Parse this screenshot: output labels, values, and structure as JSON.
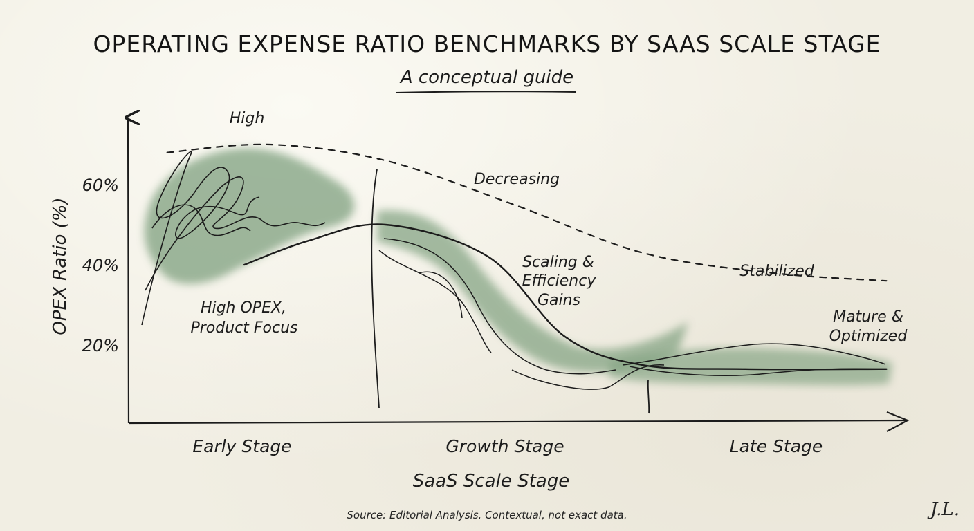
{
  "chart_data": {
    "type": "line",
    "title": "OPERATING EXPENSE RATIO BENCHMARKS BY SAAS SCALE STAGE",
    "subtitle": "A conceptual guide",
    "xlabel": "SaaS Scale Stage",
    "ylabel": "OPEX Ratio (%)",
    "y_ticks": [
      "20%",
      "40%",
      "60%"
    ],
    "categories": [
      "Early Stage",
      "Growth Stage",
      "Late Stage"
    ],
    "ylim": [
      0,
      75
    ],
    "grid": false,
    "series": [
      {
        "name": "",
        "style": "dashed",
        "x": [
          0.15,
          0.55,
          1.0,
          1.5,
          2.0,
          2.5,
          2.95
        ],
        "values": [
          68,
          70,
          66,
          55,
          43,
          38,
          36
        ]
      },
      {
        "name": "",
        "style": "solid",
        "x": [
          0.45,
          0.7,
          1.0,
          1.4,
          1.7,
          2.0,
          2.4,
          2.95
        ],
        "values": [
          40,
          46,
          50,
          42,
          22,
          15,
          14,
          14
        ]
      }
    ],
    "annotations": [
      {
        "text": "High",
        "x": 0.6,
        "y": 74
      },
      {
        "text": "Decreasing",
        "x": 1.35,
        "y": 59
      },
      {
        "text": "Stabilized",
        "x": 2.55,
        "y": 38
      },
      {
        "text": "High OPEX,",
        "x": 0.6,
        "y": 28
      },
      {
        "text": "Product Focus",
        "x": 0.6,
        "y": 23
      },
      {
        "text": "Scaling &",
        "x": 1.7,
        "y": 40
      },
      {
        "text": "Efficiency",
        "x": 1.7,
        "y": 35
      },
      {
        "text": "Gains",
        "x": 1.7,
        "y": 30
      },
      {
        "text": "Mature &",
        "x": 2.95,
        "y": 23
      },
      {
        "text": "Optimized",
        "x": 2.95,
        "y": 18
      }
    ]
  },
  "footer": {
    "source": "Source: Editorial Analysis. Contextual, not exact data.",
    "signature": "J.L."
  },
  "colors": {
    "ink": "#1c1c1c",
    "wash": "#7fa07f",
    "paper": "#f1eee3"
  }
}
